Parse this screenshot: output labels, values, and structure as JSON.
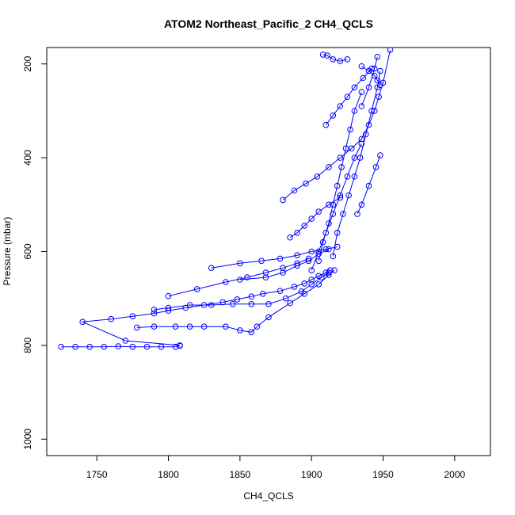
{
  "chart_data": {
    "type": "scatter",
    "title": "ATOM2 Northeast_Pacific_2 CH4_QCLS",
    "xlabel": "CH4_QCLS",
    "ylabel": "Pressure (mbar)",
    "xlim": [
      1715,
      2025
    ],
    "ylim": [
      1035,
      165
    ],
    "y_axis_reversed": true,
    "x_ticks": [
      1750,
      1800,
      1850,
      1900,
      1950,
      2000
    ],
    "y_ticks": [
      200,
      400,
      600,
      800,
      1000
    ],
    "x_tick_labels": [
      "1750",
      "1800",
      "1850",
      "1900",
      "1950",
      "2000"
    ],
    "y_tick_labels": [
      "200",
      "400",
      "600",
      "800",
      "1000"
    ],
    "grid": false,
    "legend": "none",
    "colors": {
      "series": "#0000ff"
    },
    "series": [
      {
        "marker": "open-circle",
        "line": true,
        "segments": [
          {
            "x": [
              1725,
              1735,
              1745,
              1755,
              1765,
              1775,
              1785,
              1795,
              1805,
              1808
            ],
            "y": [
              803,
              803,
              803,
              803,
              802,
              803,
              803,
              803,
              803,
              801
            ]
          },
          {
            "x": [
              1808,
              1770,
              1740,
              1760,
              1775,
              1790,
              1800,
              1812,
              1825,
              1838,
              1848,
              1858,
              1866,
              1878,
              1888,
              1895,
              1900,
              1905,
              1910,
              1913
            ],
            "y": [
              800,
              790,
              750,
              744,
              738,
              732,
              726,
              720,
              714,
              708,
              702,
              696,
              690,
              684,
              675,
              668,
              660,
              652,
              645,
              640
            ]
          },
          {
            "x": [
              1778,
              1790,
              1805,
              1815,
              1825,
              1840,
              1850,
              1858,
              1862,
              1870,
              1885,
              1895,
              1905,
              1912,
              1916
            ],
            "y": [
              762,
              760,
              760,
              760,
              760,
              760,
              768,
              772,
              760,
              740,
              710,
              690,
              670,
              650,
              640
            ]
          },
          {
            "x": [
              1790,
              1800,
              1815,
              1830,
              1845,
              1858,
              1870,
              1882,
              1893,
              1900,
              1907,
              1912
            ],
            "y": [
              724,
              720,
              714,
              714,
              712,
              712,
              712,
              700,
              685,
              670,
              655,
              645
            ]
          },
          {
            "x": [
              1800,
              1820,
              1840,
              1855,
              1868,
              1880,
              1890,
              1898
            ],
            "y": [
              695,
              680,
              665,
              655,
              645,
              635,
              625,
              615
            ]
          },
          {
            "x": [
              1830,
              1850,
              1865,
              1878,
              1890,
              1900,
              1910,
              1918
            ],
            "y": [
              635,
              625,
              620,
              615,
              608,
              600,
              595,
              590
            ]
          },
          {
            "x": [
              1850,
              1868,
              1880,
              1890,
              1898,
              1905,
              1912
            ],
            "y": [
              660,
              655,
              645,
              630,
              620,
              605,
              595
            ]
          },
          {
            "x": [
              1885,
              1890,
              1895,
              1900,
              1905,
              1912,
              1920
            ],
            "y": [
              570,
              560,
              545,
              530,
              515,
              500,
              485
            ]
          },
          {
            "x": [
              1880,
              1888,
              1896,
              1904,
              1912,
              1920,
              1928,
              1935,
              1940,
              1944,
              1947,
              1950,
              1955
            ],
            "y": [
              490,
              470,
              455,
              440,
              420,
              400,
              380,
              360,
              330,
              300,
              270,
              240,
              170
            ]
          },
          {
            "x": [
              1900,
              1905,
              1910,
              1915,
              1920,
              1925,
              1930,
              1935
            ],
            "y": [
              640,
              600,
              560,
              520,
              480,
              440,
              400,
              370
            ]
          },
          {
            "x": [
              1905,
              1908,
              1912,
              1915,
              1918,
              1921,
              1924,
              1927,
              1930,
              1935
            ],
            "y": [
              620,
              580,
              540,
              500,
              460,
              420,
              380,
              340,
              300,
              260
            ]
          },
          {
            "x": [
              1915,
              1918,
              1922,
              1926,
              1930,
              1934,
              1938,
              1942,
              1946,
              1948
            ],
            "y": [
              610,
              560,
              520,
              480,
              440,
              400,
              350,
              300,
              250,
              215
            ]
          },
          {
            "x": [
              1932,
              1935,
              1940,
              1945,
              1948
            ],
            "y": [
              520,
              500,
              460,
              420,
              395
            ]
          },
          {
            "x": [
              1935,
              1940,
              1944,
              1946
            ],
            "y": [
              290,
              250,
              210,
              185
            ]
          },
          {
            "x": [
              1910,
              1915,
              1920,
              1925,
              1930,
              1936,
              1942
            ],
            "y": [
              330,
              310,
              290,
              270,
              250,
              230,
              210
            ]
          },
          {
            "x": [
              1908,
              1911,
              1915,
              1920,
              1925
            ],
            "y": [
              180,
              182,
              190,
              194,
              190
            ]
          },
          {
            "x": [
              1935,
              1940,
              1944,
              1946,
              1948
            ],
            "y": [
              205,
              215,
              225,
              235,
              245
            ]
          }
        ]
      }
    ]
  }
}
